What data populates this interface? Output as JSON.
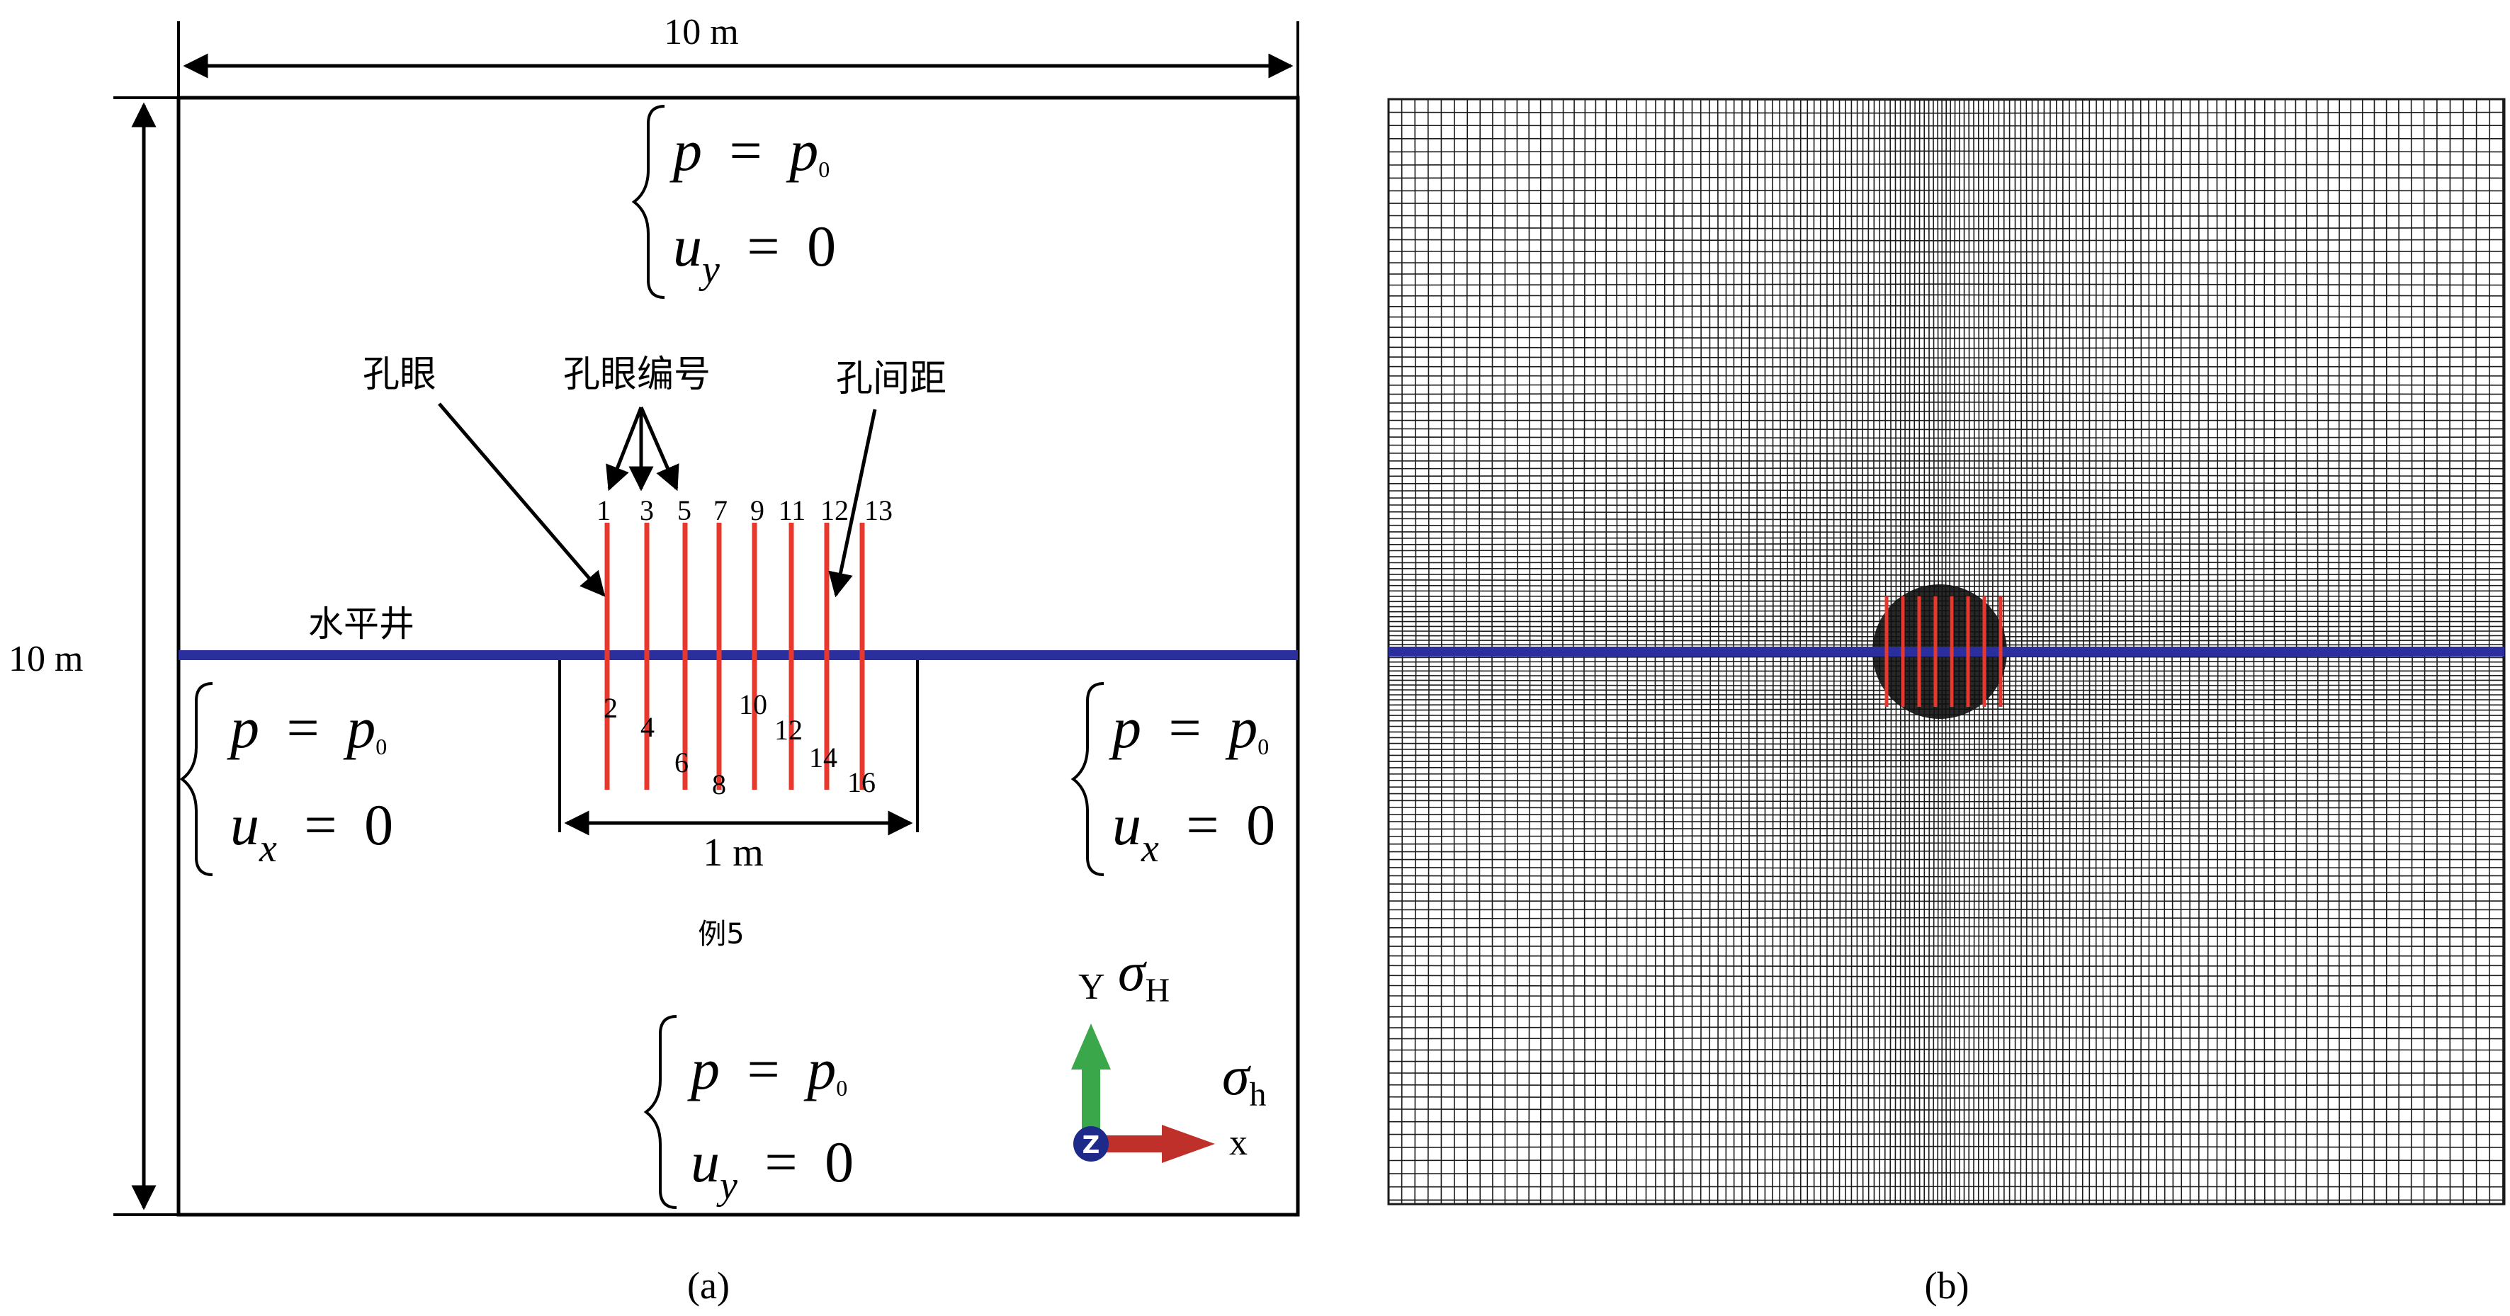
{
  "panel_a": {
    "caption": "(a)",
    "dim_width": "10 m",
    "dim_height": "10 m",
    "dim_perf_zone": "1 m",
    "label_hole": "孔眼",
    "label_hole_number": "孔眼编号",
    "label_spacing": "孔间距",
    "label_well": "水平井",
    "example_label": "例5",
    "hole_numbers_top": [
      "1",
      "3",
      "5",
      "7",
      "9",
      "11",
      "12",
      "13"
    ],
    "hole_numbers_bottom": [
      "2",
      "4",
      "6",
      "8",
      "10",
      "12",
      "14",
      "16"
    ],
    "bc_top": {
      "l1_var": "p",
      "l1_eq": "=",
      "l1_rhs": "p",
      "l1_sub": "0",
      "l2_var": "u",
      "l2_sub": "y",
      "l2_eq": "=",
      "l2_rhs": "0"
    },
    "bc_left": {
      "l1_var": "p",
      "l1_eq": "=",
      "l1_rhs": "p",
      "l1_sub": "0",
      "l2_var": "u",
      "l2_sub": "x",
      "l2_eq": "=",
      "l2_rhs": "0"
    },
    "bc_right": {
      "l1_var": "p",
      "l1_eq": "=",
      "l1_rhs": "p",
      "l1_sub": "0",
      "l2_var": "u",
      "l2_sub": "x",
      "l2_eq": "=",
      "l2_rhs": "0"
    },
    "bc_bottom": {
      "l1_var": "p",
      "l1_eq": "=",
      "l1_rhs": "p",
      "l1_sub": "0",
      "l2_var": "u",
      "l2_sub": "y",
      "l2_eq": "=",
      "l2_rhs": "0"
    },
    "axes": {
      "y_label": "Y",
      "x_label": "x",
      "z_label": "Z",
      "sigma_H": "σ",
      "sigma_H_sub": "H",
      "sigma_h": "σ",
      "sigma_h_sub": "h"
    }
  },
  "panel_b": {
    "caption": "(b)"
  },
  "colors": {
    "well": "#2b2f9e",
    "perforation": "#e8382d",
    "mesh": "#1a1a1a",
    "axis_y": "#3aa84a",
    "axis_x": "#c0302a",
    "axis_z": "#1e2a8a"
  }
}
